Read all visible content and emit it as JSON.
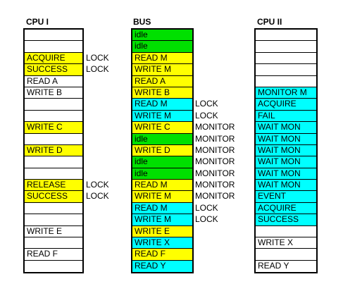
{
  "headers": {
    "cpu1": "CPU I",
    "bus": "BUS",
    "cpu2": "CPU II"
  },
  "colors": {
    "yellow": "#ffff00",
    "cyan": "#00ffff",
    "green": "#00e000",
    "white": "#ffffff"
  },
  "cpu1": [
    {
      "text": "",
      "color": "white"
    },
    {
      "text": "",
      "color": "white"
    },
    {
      "text": "ACQUIRE",
      "color": "yellow"
    },
    {
      "text": "SUCCESS",
      "color": "yellow"
    },
    {
      "text": "READ A",
      "color": "white"
    },
    {
      "text": "WRITE B",
      "color": "white"
    },
    {
      "text": "",
      "color": "white"
    },
    {
      "text": "",
      "color": "white"
    },
    {
      "text": "WRITE C",
      "color": "yellow"
    },
    {
      "text": "",
      "color": "white"
    },
    {
      "text": "WRITE D",
      "color": "yellow"
    },
    {
      "text": "",
      "color": "white"
    },
    {
      "text": "",
      "color": "white"
    },
    {
      "text": "RELEASE",
      "color": "yellow"
    },
    {
      "text": "SUCCESS",
      "color": "yellow"
    },
    {
      "text": "",
      "color": "white"
    },
    {
      "text": "",
      "color": "white"
    },
    {
      "text": "WRITE E",
      "color": "white"
    },
    {
      "text": "",
      "color": "white"
    },
    {
      "text": "READ F",
      "color": "white"
    },
    {
      "text": "",
      "color": "white"
    }
  ],
  "cpu1_notes": [
    "",
    "",
    "LOCK",
    "LOCK",
    "",
    "",
    "",
    "",
    "",
    "",
    "",
    "",
    "",
    "LOCK",
    "LOCK",
    "",
    "",
    "",
    "",
    "",
    ""
  ],
  "bus": [
    {
      "text": "idle",
      "color": "green"
    },
    {
      "text": "idle",
      "color": "green"
    },
    {
      "text": "READ M",
      "color": "yellow"
    },
    {
      "text": "WRITE M",
      "color": "yellow"
    },
    {
      "text": "READ A",
      "color": "yellow"
    },
    {
      "text": "WRITE B",
      "color": "yellow"
    },
    {
      "text": "READ M",
      "color": "cyan"
    },
    {
      "text": "WRITE M",
      "color": "cyan"
    },
    {
      "text": "WRITE C",
      "color": "yellow"
    },
    {
      "text": "idle",
      "color": "green"
    },
    {
      "text": "WRITE D",
      "color": "yellow"
    },
    {
      "text": "idle",
      "color": "green"
    },
    {
      "text": "idle",
      "color": "green"
    },
    {
      "text": "READ M",
      "color": "yellow"
    },
    {
      "text": "WRITE M",
      "color": "yellow"
    },
    {
      "text": "READ M",
      "color": "cyan"
    },
    {
      "text": "WRITE M",
      "color": "cyan"
    },
    {
      "text": "WRITE E",
      "color": "yellow"
    },
    {
      "text": "WRITE X",
      "color": "cyan"
    },
    {
      "text": "READ F",
      "color": "yellow"
    },
    {
      "text": "READ Y",
      "color": "cyan"
    }
  ],
  "bus_notes": [
    "",
    "",
    "",
    "",
    "",
    "",
    "LOCK",
    "LOCK",
    "MONITOR",
    "MONITOR",
    "MONITOR",
    "MONITOR",
    "MONITOR",
    "MONITOR",
    "MONITOR",
    "LOCK",
    "LOCK",
    "",
    "",
    "",
    ""
  ],
  "cpu2": [
    {
      "text": "",
      "color": "white"
    },
    {
      "text": "",
      "color": "white"
    },
    {
      "text": "",
      "color": "white"
    },
    {
      "text": "",
      "color": "white"
    },
    {
      "text": "",
      "color": "white"
    },
    {
      "text": "MONITOR M",
      "color": "cyan"
    },
    {
      "text": "ACQUIRE",
      "color": "cyan"
    },
    {
      "text": "FAIL",
      "color": "cyan"
    },
    {
      "text": "WAIT MON",
      "color": "cyan"
    },
    {
      "text": "WAIT MON",
      "color": "cyan"
    },
    {
      "text": "WAIT MON",
      "color": "cyan"
    },
    {
      "text": "WAIT MON",
      "color": "cyan"
    },
    {
      "text": "WAIT MON",
      "color": "cyan"
    },
    {
      "text": "WAIT MON",
      "color": "cyan"
    },
    {
      "text": "EVENT",
      "color": "cyan"
    },
    {
      "text": "ACQUIRE",
      "color": "cyan"
    },
    {
      "text": "SUCCESS",
      "color": "cyan"
    },
    {
      "text": "",
      "color": "white"
    },
    {
      "text": "WRITE X",
      "color": "white"
    },
    {
      "text": "",
      "color": "white"
    },
    {
      "text": "READ Y",
      "color": "white"
    }
  ]
}
